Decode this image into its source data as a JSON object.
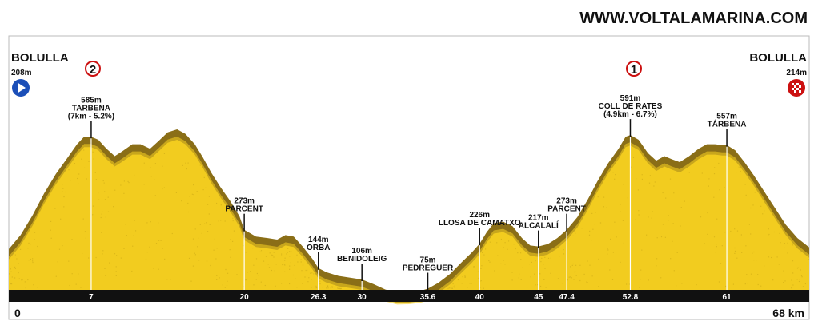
{
  "site": "WWW.VOLTALAMARINA.COM",
  "start": {
    "name": "BOLULLA",
    "alt": "208m",
    "flag_icon": "start-arrow-icon",
    "color": "#1b4fb8"
  },
  "finish": {
    "name": "BOLULLA",
    "alt": "214m",
    "flag_icon": "checkered-flag-icon",
    "color": "#cc1111"
  },
  "axis": {
    "start": "0",
    "end": "68 km"
  },
  "colors": {
    "fill": "#f2cc1f",
    "slope": "#8a6e17",
    "axis_bar": "#111111"
  },
  "climbs": [
    {
      "rank": "2",
      "km": 7
    },
    {
      "rank": "1",
      "km": 52.8
    }
  ],
  "chart_data": {
    "type": "area",
    "title": "",
    "xlabel": "",
    "ylabel": "",
    "x_range": [
      0,
      68
    ],
    "profile": [
      [
        0,
        208
      ],
      [
        1,
        255
      ],
      [
        2,
        320
      ],
      [
        3,
        395
      ],
      [
        4,
        460
      ],
      [
        5,
        515
      ],
      [
        5.8,
        560
      ],
      [
        6.4,
        585
      ],
      [
        7,
        585
      ],
      [
        7.6,
        575
      ],
      [
        8.3,
        545
      ],
      [
        9,
        520
      ],
      [
        9.6,
        535
      ],
      [
        10.5,
        560
      ],
      [
        11.2,
        560
      ],
      [
        12,
        545
      ],
      [
        12.7,
        570
      ],
      [
        13.5,
        600
      ],
      [
        14.3,
        610
      ],
      [
        15,
        595
      ],
      [
        15.8,
        560
      ],
      [
        16.5,
        515
      ],
      [
        17.2,
        465
      ],
      [
        18,
        415
      ],
      [
        18.8,
        370
      ],
      [
        19.6,
        318
      ],
      [
        20,
        273
      ],
      [
        21,
        250
      ],
      [
        22,
        245
      ],
      [
        22.8,
        240
      ],
      [
        23.5,
        255
      ],
      [
        24.2,
        250
      ],
      [
        25,
        215
      ],
      [
        25.8,
        175
      ],
      [
        26.3,
        144
      ],
      [
        27,
        130
      ],
      [
        28,
        118
      ],
      [
        29,
        112
      ],
      [
        30,
        106
      ],
      [
        31,
        90
      ],
      [
        32,
        72
      ],
      [
        33,
        62
      ],
      [
        34,
        63
      ],
      [
        35,
        68
      ],
      [
        35.6,
        75
      ],
      [
        36.5,
        95
      ],
      [
        37.5,
        125
      ],
      [
        38.5,
        165
      ],
      [
        39.3,
        195
      ],
      [
        40,
        226
      ],
      [
        40.6,
        265
      ],
      [
        41.2,
        295
      ],
      [
        42,
        300
      ],
      [
        42.8,
        285
      ],
      [
        43.6,
        245
      ],
      [
        44.3,
        220
      ],
      [
        45,
        217
      ],
      [
        45.8,
        225
      ],
      [
        46.6,
        245
      ],
      [
        47.4,
        273
      ],
      [
        48.3,
        315
      ],
      [
        49.2,
        375
      ],
      [
        50,
        435
      ],
      [
        50.9,
        495
      ],
      [
        51.8,
        545
      ],
      [
        52.4,
        585
      ],
      [
        52.8,
        591
      ],
      [
        53.5,
        575
      ],
      [
        54.3,
        530
      ],
      [
        55,
        505
      ],
      [
        55.7,
        520
      ],
      [
        56.3,
        510
      ],
      [
        57,
        500
      ],
      [
        57.8,
        520
      ],
      [
        58.6,
        545
      ],
      [
        59.3,
        560
      ],
      [
        60,
        560
      ],
      [
        60.6,
        557
      ],
      [
        61,
        557
      ],
      [
        61.7,
        540
      ],
      [
        62.5,
        500
      ],
      [
        63.3,
        455
      ],
      [
        64.2,
        400
      ],
      [
        65.1,
        345
      ],
      [
        66,
        290
      ],
      [
        67,
        245
      ],
      [
        68,
        214
      ]
    ],
    "points": [
      {
        "km": 7,
        "km_label": "7",
        "alt": "585m",
        "name": "TARBENA",
        "note": "(7km - 5.2%)"
      },
      {
        "km": 20,
        "km_label": "20",
        "alt": "273m",
        "name": "PARCENT",
        "note": ""
      },
      {
        "km": 26.3,
        "km_label": "26.3",
        "alt": "144m",
        "name": "ORBA",
        "note": ""
      },
      {
        "km": 30,
        "km_label": "30",
        "alt": "106m",
        "name": "BENIDOLEIG",
        "note": ""
      },
      {
        "km": 35.6,
        "km_label": "35.6",
        "alt": "75m",
        "name": "PEDREGUER",
        "note": ""
      },
      {
        "km": 40,
        "km_label": "40",
        "alt": "226m",
        "name": "LLOSA DE CAMATXO",
        "note": ""
      },
      {
        "km": 45,
        "km_label": "45",
        "alt": "217m",
        "name": "ALCALALÍ",
        "note": ""
      },
      {
        "km": 47.4,
        "km_label": "47.4",
        "alt": "273m",
        "name": "PARCENT",
        "note": ""
      },
      {
        "km": 52.8,
        "km_label": "52.8",
        "alt": "591m",
        "name": "COLL DE RATES",
        "note": "(4.9km - 6.7%)"
      },
      {
        "km": 61,
        "km_label": "61",
        "alt": "557m",
        "name": "TÁRBENA",
        "note": ""
      }
    ]
  }
}
